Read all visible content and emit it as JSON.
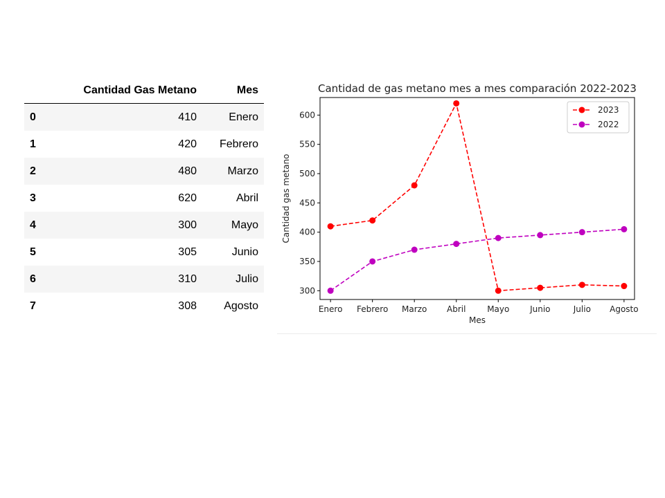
{
  "table": {
    "columns": [
      "",
      "Cantidad Gas Metano",
      "Mes"
    ],
    "rows": [
      {
        "index": "0",
        "cantidad": "410",
        "mes": "Enero"
      },
      {
        "index": "1",
        "cantidad": "420",
        "mes": "Febrero"
      },
      {
        "index": "2",
        "cantidad": "480",
        "mes": "Marzo"
      },
      {
        "index": "3",
        "cantidad": "620",
        "mes": "Abril"
      },
      {
        "index": "4",
        "cantidad": "300",
        "mes": "Mayo"
      },
      {
        "index": "5",
        "cantidad": "305",
        "mes": "Junio"
      },
      {
        "index": "6",
        "cantidad": "310",
        "mes": "Julio"
      },
      {
        "index": "7",
        "cantidad": "308",
        "mes": "Agosto"
      }
    ]
  },
  "chart_data": {
    "type": "line",
    "title": "Cantidad de gas metano mes a mes comparación 2022-2023",
    "xlabel": "Mes",
    "ylabel": "Cantidad gas metano",
    "categories": [
      "Enero",
      "Febrero",
      "Marzo",
      "Abril",
      "Mayo",
      "Junio",
      "Julio",
      "Agosto"
    ],
    "ylim": [
      285,
      630
    ],
    "yticks": [
      300,
      350,
      400,
      450,
      500,
      550,
      600
    ],
    "grid": false,
    "legend_position": "top-right",
    "series": [
      {
        "name": "2023",
        "color": "#ff0000",
        "line_style": "dashed",
        "marker": "circle",
        "values": [
          410,
          420,
          480,
          620,
          300,
          305,
          310,
          308
        ]
      },
      {
        "name": "2022",
        "color": "#bf00bf",
        "line_style": "dashed",
        "marker": "circle",
        "values": [
          300,
          350,
          370,
          380,
          390,
          395,
          400,
          405
        ]
      }
    ]
  }
}
